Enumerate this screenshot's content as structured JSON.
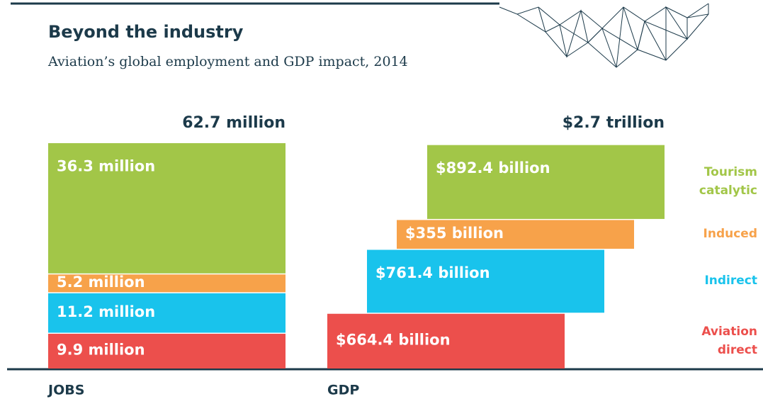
{
  "title": "Beyond the industry",
  "subtitle": "Aviation’s global employment and GDP impact, 2014",
  "chart_data": [
    {
      "type": "stacked-bar",
      "axis_label": "JOBS",
      "total": 62.7,
      "total_label": "62.7 million",
      "ylim": [
        0,
        62.7
      ],
      "series": [
        {
          "color": "#ec4f4c",
          "values": [
            9.9
          ],
          "value_labels": [
            "9.9 million"
          ]
        },
        {
          "color": "#19c3ec",
          "values": [
            11.2
          ],
          "value_labels": [
            "11.2 million"
          ]
        },
        {
          "color": "#f7a24a",
          "values": [
            5.2
          ],
          "value_labels": [
            "5.2 million"
          ]
        },
        {
          "color": "#a2c648",
          "values": [
            36.3
          ],
          "value_labels": [
            "36.3 million"
          ]
        }
      ]
    },
    {
      "type": "stacked-bar",
      "axis_label": "GDP",
      "total": 2700,
      "total_label": "$2.7 trillion",
      "ylim": [
        0,
        2700
      ],
      "series": [
        {
          "name": "Aviation direct",
          "color": "#ec4f4c",
          "values": [
            664.4
          ],
          "value_labels": [
            "$664.4 billion"
          ]
        },
        {
          "name": "Indirect",
          "color": "#19c3ec",
          "values": [
            761.4
          ],
          "value_labels": [
            "$761.4 billion"
          ]
        },
        {
          "name": "Induced",
          "color": "#f7a24a",
          "values": [
            355
          ],
          "value_labels": [
            "$355 billion"
          ]
        },
        {
          "name": "Tourism catalytic",
          "color": "#a2c648",
          "values": [
            892.4
          ],
          "value_labels": [
            "$892.4 billion"
          ]
        }
      ]
    }
  ]
}
